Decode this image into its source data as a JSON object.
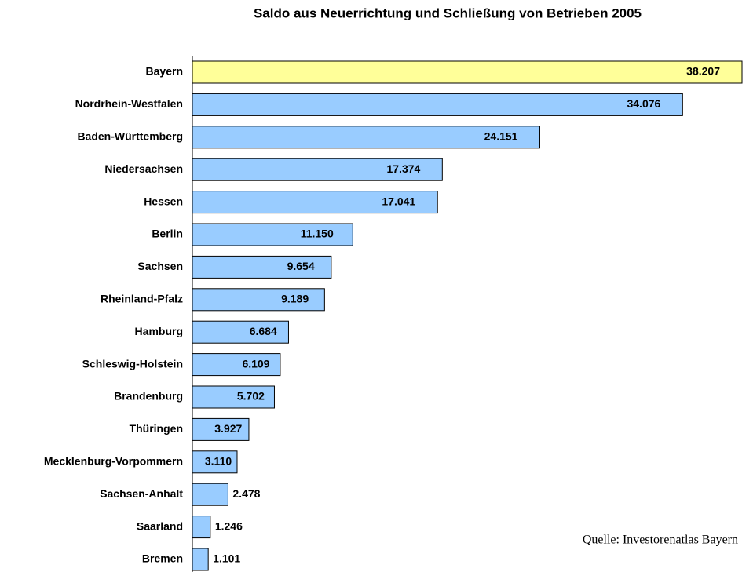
{
  "chart_data": {
    "type": "bar",
    "orientation": "horizontal",
    "title": "Saldo aus Neuerrichtung und Schließung von Betrieben 2005",
    "source": "Quelle: Investorenatlas Bayern",
    "categories": [
      "Bayern",
      "Nordrhein-Westfalen",
      "Baden-Württemberg",
      "Niedersachsen",
      "Hessen",
      "Berlin",
      "Sachsen",
      "Rheinland-Pfalz",
      "Hamburg",
      "Schleswig-Holstein",
      "Brandenburg",
      "Thüringen",
      "Mecklenburg-Vorpommern",
      "Sachsen-Anhalt",
      "Saarland",
      "Bremen"
    ],
    "values": [
      38207,
      34076,
      24151,
      17374,
      17041,
      11150,
      9654,
      9189,
      6684,
      6109,
      5702,
      3927,
      3110,
      2478,
      1246,
      1101
    ],
    "value_labels": [
      "38.207",
      "34.076",
      "24.151",
      "17.374",
      "17.041",
      "11.150",
      "9.654",
      "9.189",
      "6.684",
      "6.109",
      "5.702",
      "3.927",
      "3.110",
      "2.478",
      "1.246",
      "1.101"
    ],
    "colors": [
      "#ffff99",
      "#99ccff",
      "#99ccff",
      "#99ccff",
      "#99ccff",
      "#99ccff",
      "#99ccff",
      "#99ccff",
      "#99ccff",
      "#99ccff",
      "#99ccff",
      "#99ccff",
      "#99ccff",
      "#99ccff",
      "#99ccff",
      "#99ccff"
    ]
  }
}
